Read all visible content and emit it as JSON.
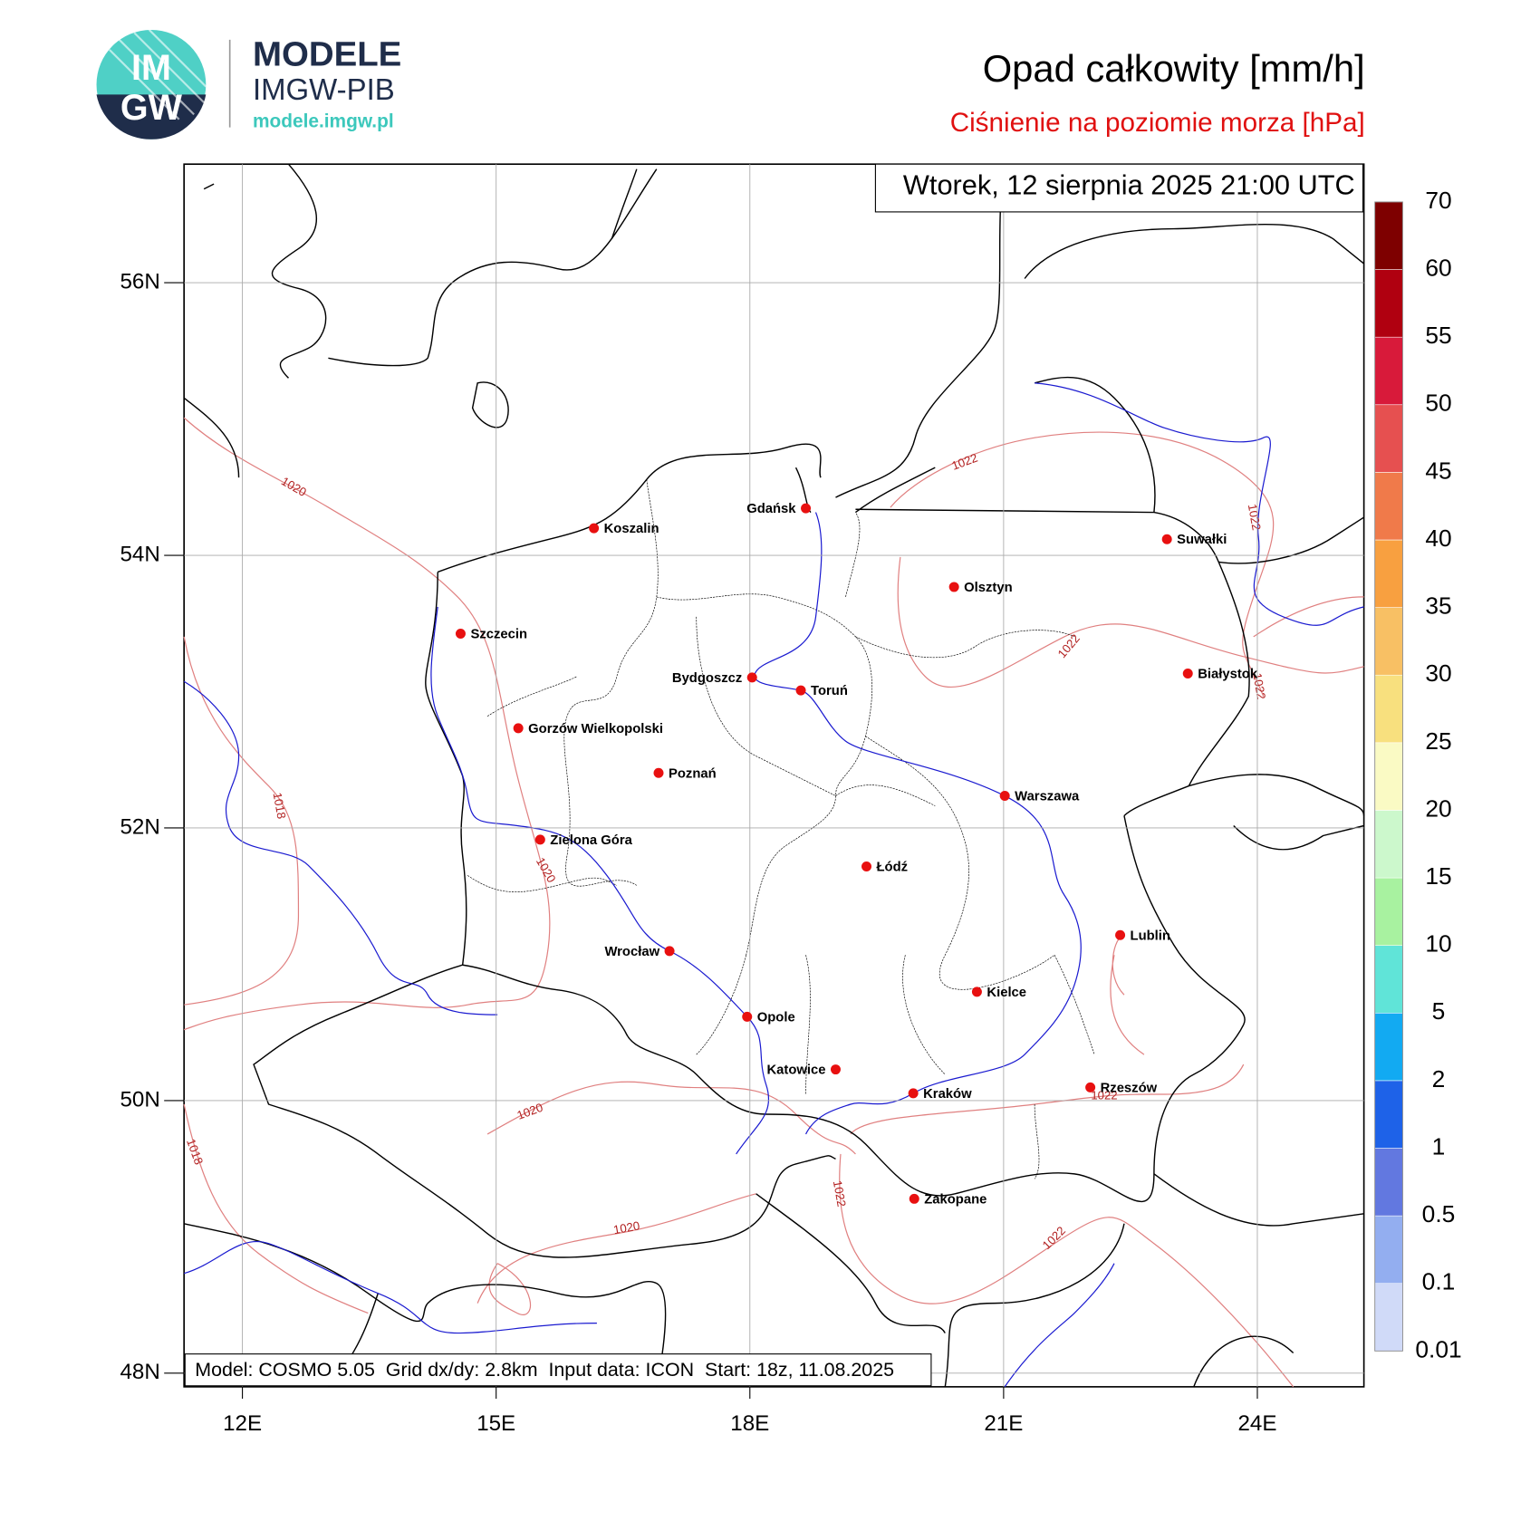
{
  "logo": {
    "mark_top": "IM",
    "mark_bottom": "GW",
    "brand": "MODELE",
    "org": "IMGW-PIB",
    "url": "modele.imgw.pl"
  },
  "title": "Opad całkowity [mm/h]",
  "subtitle": "Ciśnienie na poziomie morza [hPa]",
  "valid_time": "Wtorek, 12 sierpnia 2025 21:00 UTC",
  "model_info": "Model: COSMO 5.05  Grid dx/dy: 2.8km  Input data: ICON  Start: 18z, 11.08.2025",
  "map": {
    "xlim": [
      11.31,
      25.26
    ],
    "ylim": [
      47.9,
      56.87
    ],
    "grid": true,
    "xticks": [
      {
        "value": 12,
        "label": "12E"
      },
      {
        "value": 15,
        "label": "15E"
      },
      {
        "value": 18,
        "label": "18E"
      },
      {
        "value": 21,
        "label": "21E"
      },
      {
        "value": 24,
        "label": "24E"
      }
    ],
    "yticks": [
      {
        "value": 48,
        "label": "48N"
      },
      {
        "value": 50,
        "label": "50N"
      },
      {
        "value": 52,
        "label": "52N"
      },
      {
        "value": 54,
        "label": "54N"
      },
      {
        "value": 56,
        "label": "56N"
      }
    ],
    "cities": [
      "Gdańsk",
      "Koszalin",
      "Suwałki",
      "Olsztyn",
      "Szczecin",
      "Białystok",
      "Bydgoszcz",
      "Toruń",
      "Gorzów Wielkopolski",
      "Poznań",
      "Warszawa",
      "Zielona Góra",
      "Łódź",
      "Lublin",
      "Wrocław",
      "Kielce",
      "Opole",
      "Katowice",
      "Rzeszów",
      "Kraków",
      "Zakopane"
    ],
    "isobar_labels": [
      1020,
      1022,
      1022,
      1022,
      1022,
      1018,
      1020,
      1020,
      1018,
      1022,
      1022,
      1020,
      1022
    ]
  },
  "colorbar": {
    "levels": [
      0.01,
      0.1,
      0.5,
      1,
      2,
      5,
      10,
      15,
      20,
      25,
      30,
      35,
      40,
      45,
      50,
      55,
      60,
      70
    ],
    "colors": [
      "#d0daf8",
      "#93aef0",
      "#6278e0",
      "#1e62e8",
      "#12aaf2",
      "#60e4d8",
      "#a8f2a0",
      "#ccf8cc",
      "#fafac4",
      "#f8e07e",
      "#f8c064",
      "#f8a040",
      "#f07a4a",
      "#e65050",
      "#d81a3a",
      "#b00010",
      "#7e0000"
    ]
  }
}
